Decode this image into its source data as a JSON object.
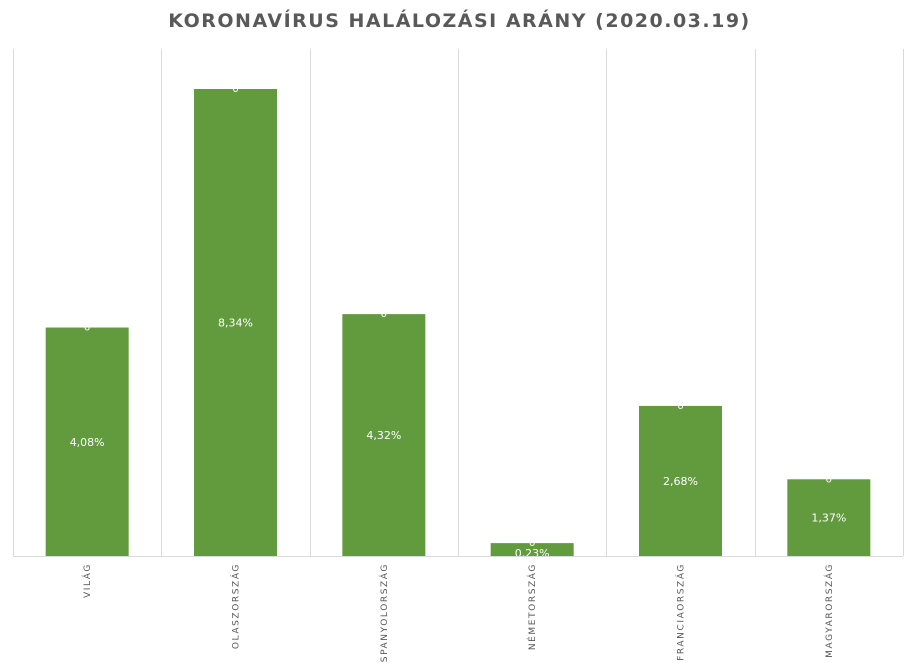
{
  "chart_data": {
    "type": "bar",
    "title": "KORONAVÍRUS HALÁLOZÁSI ARÁNY (2020.03.19)",
    "xlabel": "",
    "ylabel": "",
    "categories": [
      "VILÁG",
      "OLASZORSZÁG",
      "SPANYOLORSZÁG",
      "NÉMETORSZÁG",
      "FRANCIAORSZÁG",
      "MAGYARORSZÁG"
    ],
    "values": [
      4.08,
      8.34,
      4.32,
      0.23,
      2.68,
      1.37
    ],
    "data_labels": [
      "4,08%",
      "8,34%",
      "4,32%",
      "0,23%",
      "2,68%",
      "1,37%"
    ],
    "secondary_labels": [
      "0",
      "0",
      "0",
      "0",
      "0",
      "0"
    ],
    "ylim": [
      0,
      8.34
    ],
    "grid": "vertical",
    "legend": "none",
    "bar_color": "#629A3E",
    "grid_color": "#D9D9D9"
  }
}
